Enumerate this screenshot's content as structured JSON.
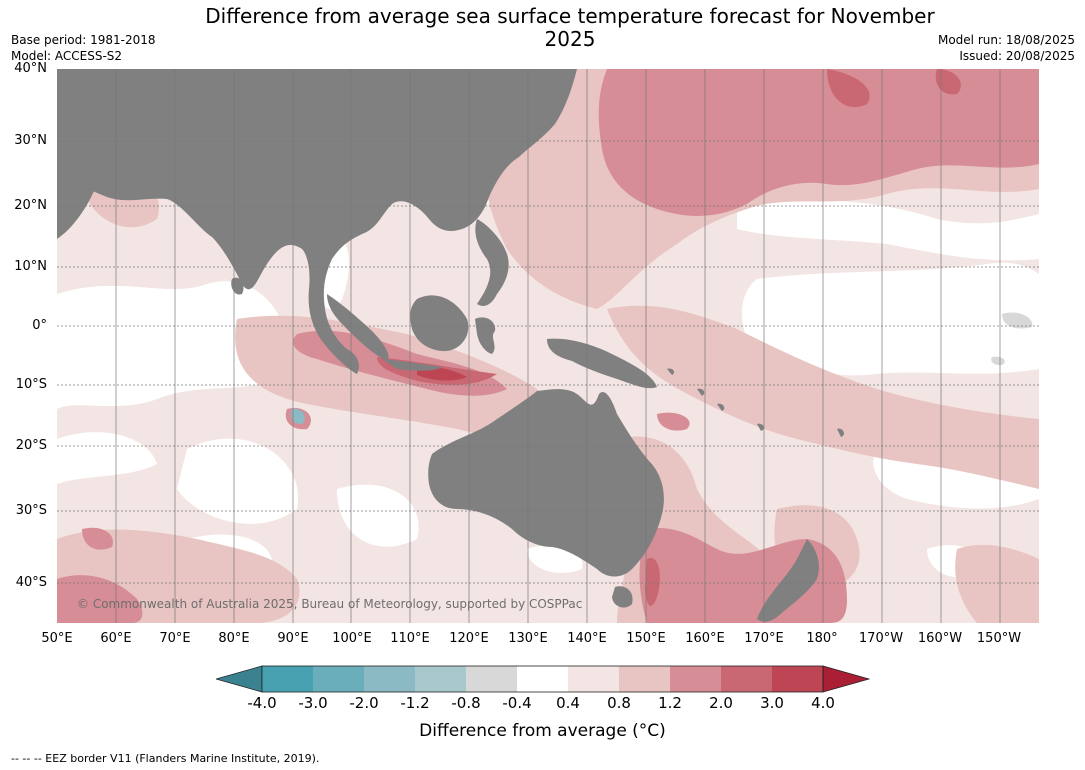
{
  "title": "Difference from average sea surface temperature forecast for November 2025",
  "meta": {
    "base_period": "Base period: 1981-2018",
    "model": "Model: ACCESS-S2",
    "model_run": "Model run: 18/08/2025",
    "issued": "Issued: 20/08/2025"
  },
  "map": {
    "latitude_labels": [
      "40°N",
      "30°N",
      "20°N",
      "10°N",
      "0°",
      "10°S",
      "20°S",
      "30°S",
      "40°S"
    ],
    "longitude_labels": [
      "50°E",
      "60°E",
      "70°E",
      "80°E",
      "90°E",
      "100°E",
      "110°E",
      "120°E",
      "130°E",
      "140°E",
      "150°E",
      "160°E",
      "170°E",
      "180°",
      "170°W",
      "160°W",
      "150°W"
    ],
    "land_color": "#808080",
    "gridline_color": "#777777"
  },
  "copyright": "© Commonwealth of Australia 2025, Bureau of Meteorology, supported by COSPPac",
  "legend": {
    "ticks": [
      "-4.0",
      "-3.0",
      "-2.0",
      "-1.2",
      "-0.8",
      "-0.4",
      "0.4",
      "0.8",
      "1.2",
      "2.0",
      "3.0",
      "4.0"
    ],
    "colors": [
      "#3a8290",
      "#48a1b1",
      "#6aaebb",
      "#8bbac4",
      "#a9c8cc",
      "#d8d8d8",
      "#ffffff",
      "#f3e5e4",
      "#e8c5c2",
      "#d78d95",
      "#c96873",
      "#be4554",
      "#ab1f35"
    ],
    "label": "Difference from average (°C)"
  },
  "footnote": "--  --  -- EEZ border V11 (Flanders Marine Institute, 2019)."
}
